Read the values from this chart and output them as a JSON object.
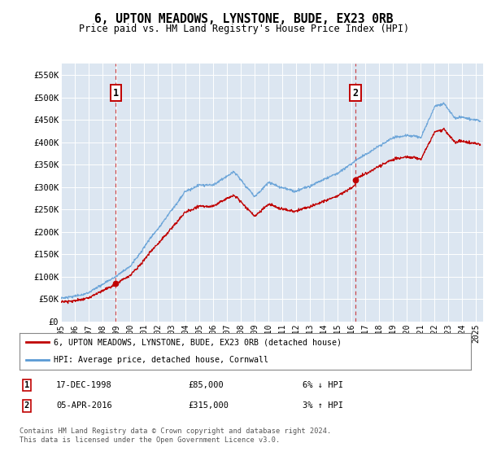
{
  "title": "6, UPTON MEADOWS, LYNSTONE, BUDE, EX23 0RB",
  "subtitle": "Price paid vs. HM Land Registry's House Price Index (HPI)",
  "legend_line1": "6, UPTON MEADOWS, LYNSTONE, BUDE, EX23 0RB (detached house)",
  "legend_line2": "HPI: Average price, detached house, Cornwall",
  "footnote": "Contains HM Land Registry data © Crown copyright and database right 2024.\nThis data is licensed under the Open Government Licence v3.0.",
  "sale1_date": "17-DEC-1998",
  "sale1_price": "£85,000",
  "sale1_hpi": "6% ↓ HPI",
  "sale2_date": "05-APR-2016",
  "sale2_price": "£315,000",
  "sale2_hpi": "3% ↑ HPI",
  "sale1_year": 1998.96,
  "sale1_value": 85000,
  "sale2_year": 2016.26,
  "sale2_value": 315000,
  "hpi_color": "#5b9bd5",
  "price_color": "#c00000",
  "sale_vline_color": "#c00000",
  "plot_bg": "#dce6f1",
  "grid_color": "#ffffff",
  "ylim": [
    0,
    575000
  ],
  "yticks": [
    0,
    50000,
    100000,
    150000,
    200000,
    250000,
    300000,
    350000,
    400000,
    450000,
    500000,
    550000
  ],
  "ytick_labels": [
    "£0",
    "£50K",
    "£100K",
    "£150K",
    "£200K",
    "£250K",
    "£300K",
    "£350K",
    "£400K",
    "£450K",
    "£500K",
    "£550K"
  ],
  "xlim_start": 1995.0,
  "xlim_end": 2025.5,
  "xtick_years": [
    1995,
    1996,
    1997,
    1998,
    1999,
    2000,
    2001,
    2002,
    2003,
    2004,
    2005,
    2006,
    2007,
    2008,
    2009,
    2010,
    2011,
    2012,
    2013,
    2014,
    2015,
    2016,
    2017,
    2018,
    2019,
    2020,
    2021,
    2022,
    2023,
    2024,
    2025
  ],
  "num_points": 1200
}
